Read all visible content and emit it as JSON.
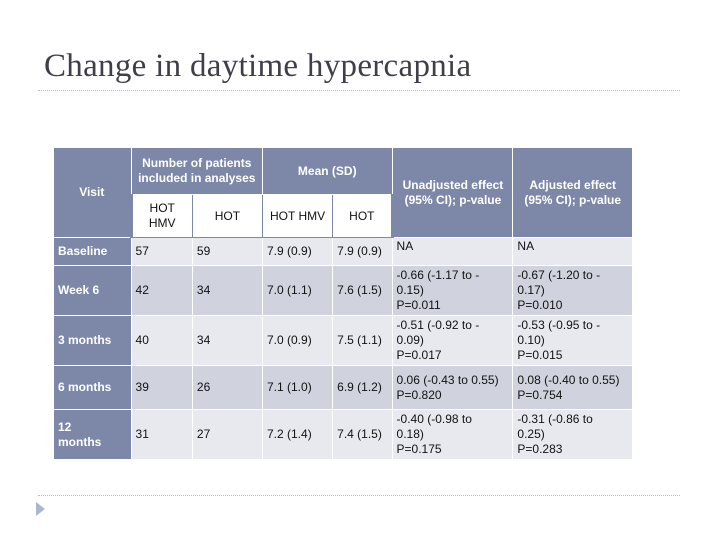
{
  "title": "Change in daytime hypercapnia",
  "table": {
    "headers": {
      "visit": "Visit",
      "number_group": "Number of patients included in analyses",
      "mean_group": "Mean (SD)",
      "unadjusted": "Unadjusted effect (95% CI); p-value",
      "adjusted": "Adjusted effect (95% CI); p-value",
      "sub": [
        "HOT\nHMV",
        "HOT",
        "HOT\nHMV",
        "HOT"
      ]
    },
    "rows": [
      {
        "visit": "Baseline",
        "n_hothmv": "57",
        "n_hot": "59",
        "mean_hothmv": "7.9 (0.9)",
        "mean_hot": "7.9 (0.9)",
        "unadjusted": "NA",
        "adjusted": "NA"
      },
      {
        "visit": "Week 6",
        "n_hothmv": "42",
        "n_hot": "34",
        "mean_hothmv": "7.0 (1.1)",
        "mean_hot": "7.6 (1.5)",
        "unadjusted": "-0.66 (-1.17 to -\n0.15)\nP=0.011",
        "adjusted": "-0.67 (-1.20 to -\n0.17)\nP=0.010"
      },
      {
        "visit": "3 months",
        "n_hothmv": "40",
        "n_hot": "34",
        "mean_hothmv": "7.0 (0.9)",
        "mean_hot": "7.5 (1.1)",
        "unadjusted": "-0.51 (-0.92 to -\n0.09)\nP=0.017",
        "adjusted": "-0.53 (-0.95 to -\n0.10)\nP=0.015"
      },
      {
        "visit": "6 months",
        "n_hothmv": "39",
        "n_hot": "26",
        "mean_hothmv": "7.1 (1.0)",
        "mean_hot": "6.9 (1.2)",
        "unadjusted": "0.06 (-0.43 to 0.55)\nP=0.820",
        "adjusted": "0.08 (-0.40 to 0.55)\nP=0.754"
      },
      {
        "visit": "12\nmonths",
        "n_hothmv": "31",
        "n_hot": "27",
        "mean_hothmv": "7.2 (1.4)",
        "mean_hot": "7.4 (1.5)",
        "unadjusted": "-0.40 (-0.98 to\n0.18)\nP=0.175",
        "adjusted": "-0.31 (-0.86 to\n0.25)\nP=0.283"
      }
    ]
  }
}
